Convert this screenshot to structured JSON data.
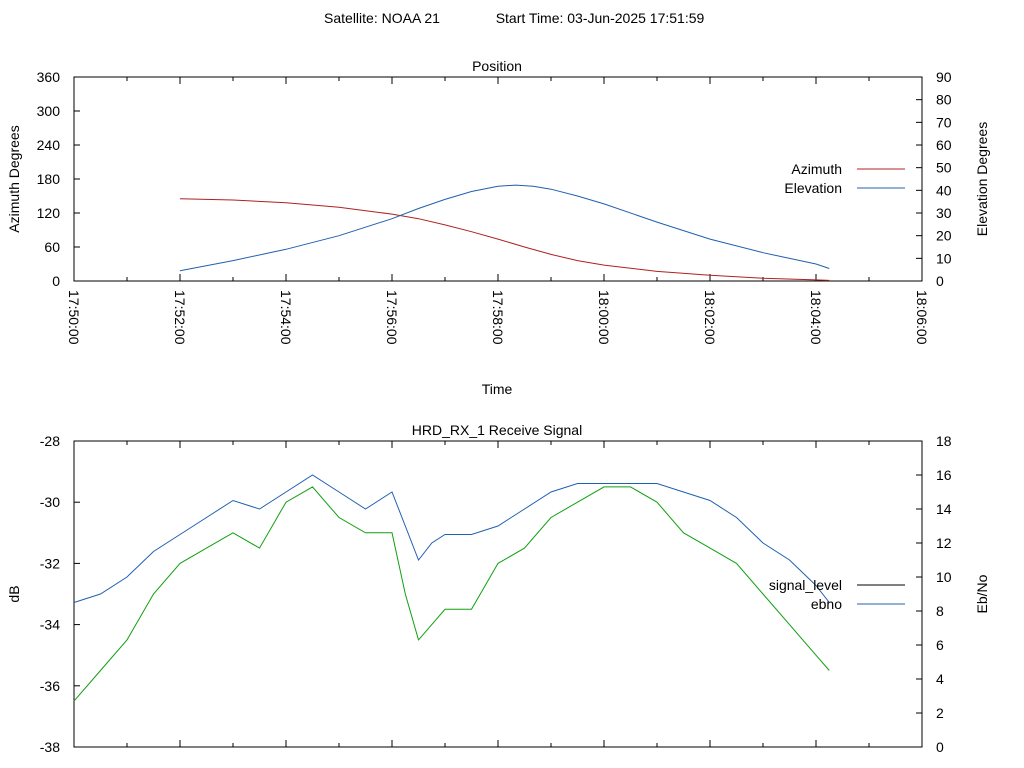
{
  "header": {
    "satellite": "Satellite: NOAA 21",
    "start_time": "Start Time: 03-Jun-2025 17:51:59"
  },
  "chart_data": [
    {
      "type": "line",
      "title": "Position",
      "xlabel": "Time",
      "ylabel": "Azimuth Degrees",
      "y2label": "Elevation Degrees",
      "x_ticks": [
        "17:50:00",
        "17:52:00",
        "17:54:00",
        "17:56:00",
        "17:58:00",
        "18:00:00",
        "18:02:00",
        "18:04:00",
        "18:06:00"
      ],
      "xlim": [
        "17:50:00",
        "18:06:00"
      ],
      "ylim": [
        0,
        360
      ],
      "y_ticks": [
        0,
        60,
        120,
        180,
        240,
        300,
        360
      ],
      "y2lim": [
        0,
        90
      ],
      "y2_ticks": [
        0,
        10,
        20,
        30,
        40,
        50,
        60,
        70,
        80,
        90
      ],
      "grid": false,
      "legend_position": "right",
      "series": [
        {
          "name": "Azimuth",
          "axis": "left",
          "color": "#b02020",
          "x": [
            "17:52:00",
            "17:53:00",
            "17:54:00",
            "17:55:00",
            "17:56:00",
            "17:56:30",
            "17:57:00",
            "17:57:30",
            "17:58:00",
            "17:58:30",
            "17:59:00",
            "17:59:30",
            "18:00:00",
            "18:01:00",
            "18:02:00",
            "18:03:00",
            "18:04:00",
            "18:04:15"
          ],
          "values": [
            145,
            143,
            138,
            130,
            118,
            110,
            99,
            87,
            74,
            60,
            47,
            36,
            28,
            17,
            10,
            5,
            2,
            1
          ]
        },
        {
          "name": "Elevation",
          "axis": "right",
          "color": "#2060b0",
          "x": [
            "17:52:00",
            "17:53:00",
            "17:54:00",
            "17:55:00",
            "17:56:00",
            "17:56:30",
            "17:57:00",
            "17:57:30",
            "17:58:00",
            "17:58:20",
            "17:58:40",
            "17:59:00",
            "17:59:30",
            "18:00:00",
            "18:01:00",
            "18:02:00",
            "18:03:00",
            "18:04:00",
            "18:04:15"
          ],
          "values": [
            4.5,
            9,
            14,
            20,
            27.5,
            32,
            36,
            39.5,
            41.8,
            42.3,
            41.8,
            40.5,
            37.5,
            34,
            26,
            18.5,
            12.5,
            7.5,
            5.5
          ]
        }
      ]
    },
    {
      "type": "line",
      "title": "HRD_RX_1 Receive Signal",
      "ylabel": "dB",
      "y2label": "Eb/No",
      "xlim": [
        "17:50:00",
        "18:06:00"
      ],
      "ylim": [
        -38,
        -28
      ],
      "y_ticks": [
        -38,
        -36,
        -34,
        -32,
        -30,
        -28
      ],
      "y2lim": [
        0,
        18
      ],
      "y2_ticks": [
        0,
        2,
        4,
        6,
        8,
        10,
        12,
        14,
        16,
        18
      ],
      "grid": false,
      "legend_position": "right",
      "series": [
        {
          "name": "signal_level",
          "axis": "left",
          "color": "#000000",
          "x": [],
          "values": []
        },
        {
          "name": "ebno",
          "axis": "right",
          "color": "#2060b0",
          "x": [
            "17:50:00",
            "17:50:30",
            "17:51:00",
            "17:51:30",
            "17:52:00",
            "17:52:30",
            "17:53:00",
            "17:53:30",
            "17:54:00",
            "17:54:30",
            "17:55:00",
            "17:55:30",
            "17:56:00",
            "17:56:15",
            "17:56:30",
            "17:56:45",
            "17:57:00",
            "17:57:30",
            "17:58:00",
            "17:58:30",
            "17:59:00",
            "17:59:30",
            "18:00:00",
            "18:00:30",
            "18:01:00",
            "18:01:30",
            "18:02:00",
            "18:02:30",
            "18:03:00",
            "18:03:30",
            "18:04:00",
            "18:04:15"
          ],
          "values": [
            8.5,
            9.0,
            10.0,
            11.5,
            12.5,
            13.5,
            14.5,
            14.0,
            15.0,
            16.0,
            15.0,
            14.0,
            15.0,
            13.0,
            11.0,
            12.0,
            12.5,
            12.5,
            13.0,
            14.0,
            15.0,
            15.5,
            15.5,
            15.5,
            15.5,
            15.0,
            14.5,
            13.5,
            12.0,
            11.0,
            9.5,
            8.5
          ]
        },
        {
          "name": "",
          "axis": "left",
          "color": "#10a010",
          "x": [
            "17:50:00",
            "17:50:30",
            "17:51:00",
            "17:51:30",
            "17:52:00",
            "17:52:30",
            "17:53:00",
            "17:53:30",
            "17:54:00",
            "17:54:30",
            "17:55:00",
            "17:55:30",
            "17:56:00",
            "17:56:15",
            "17:56:30",
            "17:56:45",
            "17:57:00",
            "17:57:30",
            "17:58:00",
            "17:58:30",
            "17:59:00",
            "17:59:30",
            "18:00:00",
            "18:00:30",
            "18:01:00",
            "18:01:30",
            "18:02:00",
            "18:02:30",
            "18:03:00",
            "18:03:30",
            "18:04:00",
            "18:04:15"
          ],
          "values": [
            -36.5,
            -35.5,
            -34.5,
            -33.0,
            -32.0,
            -31.5,
            -31.0,
            -31.5,
            -30.0,
            -29.5,
            -30.5,
            -31.0,
            -31.0,
            -33.0,
            -34.5,
            -34.0,
            -33.5,
            -33.5,
            -32.0,
            -31.5,
            -30.5,
            -30.0,
            -29.5,
            -29.5,
            -30.0,
            -31.0,
            -31.5,
            -32.0,
            -33.0,
            -34.0,
            -35.0,
            -35.5
          ]
        }
      ]
    }
  ]
}
